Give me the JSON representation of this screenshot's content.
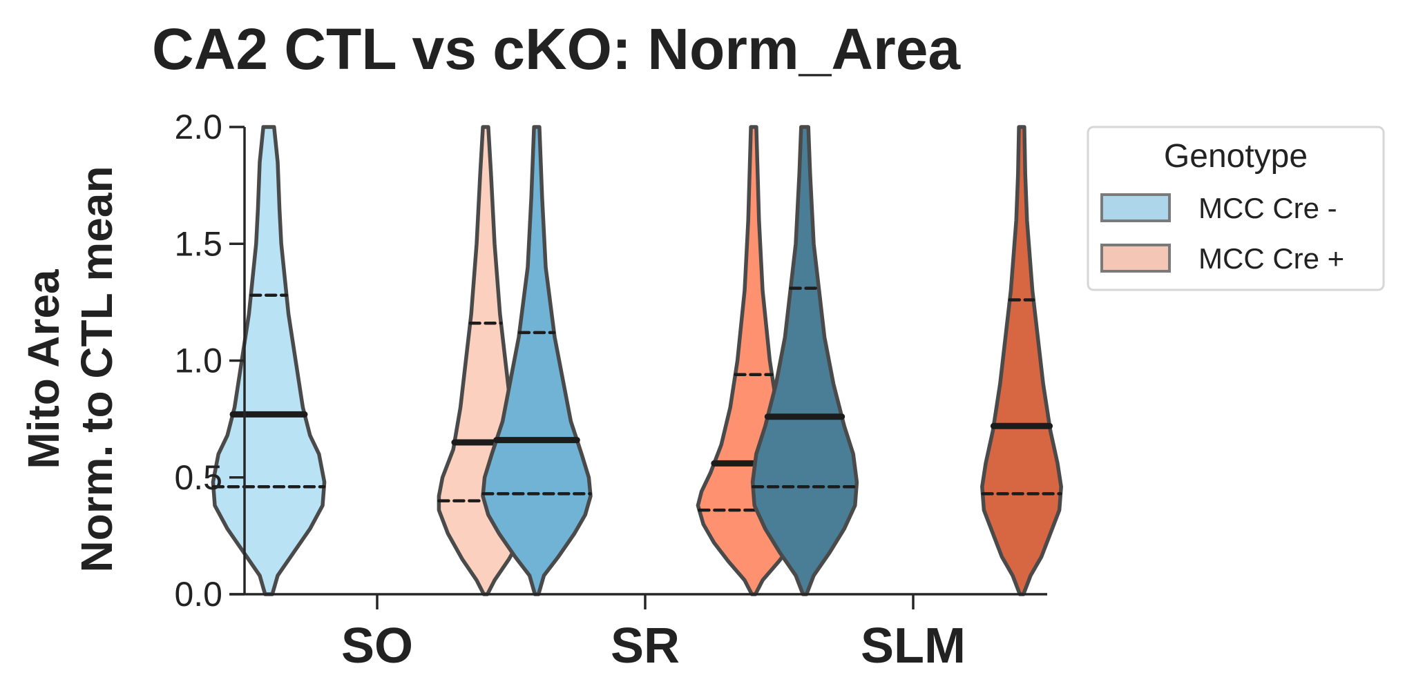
{
  "chart_data": {
    "type": "violin",
    "title": "CA2 CTL vs cKO: Norm_Area",
    "ylabel_lines": [
      "Mito Area",
      "Norm. to CTL mean"
    ],
    "xlabel": "",
    "ylim": [
      0,
      2
    ],
    "yticks": [
      0,
      0.5,
      1,
      1.5,
      2
    ],
    "ytick_labels": [
      "0.0",
      "0.5",
      "1.0",
      "1.5",
      "2.0"
    ],
    "categories": [
      "SO",
      "SR",
      "SLM"
    ],
    "legend": {
      "title": "Genotype",
      "placement": "outside-right",
      "entries": [
        {
          "label": "MCC Cre -",
          "color": "#aed6ea"
        },
        {
          "label": "MCC Cre +",
          "color": "#f4c6b6"
        }
      ]
    },
    "series": [
      {
        "name": "MCC Cre -",
        "colors": [
          "#bae2f5",
          "#71b3d4",
          "#4a7d96"
        ]
      },
      {
        "name": "MCC Cre +",
        "colors": [
          "#fcd0bf",
          "#fe9270",
          "#d76643"
        ]
      }
    ],
    "violins": [
      {
        "category": "SO",
        "series": "MCC Cre -",
        "median": 0.77,
        "q1": 0.46,
        "q3": 1.28,
        "profile": [
          [
            0,
            0.02
          ],
          [
            0.08,
            0.05
          ],
          [
            0.18,
            0.14
          ],
          [
            0.28,
            0.23
          ],
          [
            0.38,
            0.3
          ],
          [
            0.48,
            0.31
          ],
          [
            0.6,
            0.28
          ],
          [
            0.68,
            0.23
          ],
          [
            0.8,
            0.19
          ],
          [
            1.0,
            0.15
          ],
          [
            1.2,
            0.11
          ],
          [
            1.5,
            0.07
          ],
          [
            1.65,
            0.06
          ],
          [
            1.85,
            0.05
          ],
          [
            2.0,
            0.03
          ]
        ]
      },
      {
        "category": "SO",
        "series": "MCC Cre +",
        "median": 0.65,
        "q1": 0.4,
        "q3": 1.16,
        "profile": [
          [
            0,
            0.01
          ],
          [
            0.06,
            0.05
          ],
          [
            0.15,
            0.13
          ],
          [
            0.26,
            0.21
          ],
          [
            0.36,
            0.26
          ],
          [
            0.42,
            0.26
          ],
          [
            0.5,
            0.24
          ],
          [
            0.62,
            0.18
          ],
          [
            0.8,
            0.14
          ],
          [
            1.0,
            0.11
          ],
          [
            1.2,
            0.08
          ],
          [
            1.5,
            0.05
          ],
          [
            1.8,
            0.03
          ],
          [
            2.0,
            0.015
          ]
        ]
      },
      {
        "category": "SR",
        "series": "MCC Cre -",
        "median": 0.66,
        "q1": 0.43,
        "q3": 1.12,
        "profile": [
          [
            0,
            0.01
          ],
          [
            0.08,
            0.04
          ],
          [
            0.16,
            0.12
          ],
          [
            0.26,
            0.21
          ],
          [
            0.34,
            0.27
          ],
          [
            0.42,
            0.3
          ],
          [
            0.5,
            0.29
          ],
          [
            0.6,
            0.25
          ],
          [
            0.74,
            0.19
          ],
          [
            0.9,
            0.15
          ],
          [
            1.1,
            0.1
          ],
          [
            1.4,
            0.05
          ],
          [
            1.7,
            0.03
          ],
          [
            2.0,
            0.015
          ]
        ]
      },
      {
        "category": "SR",
        "series": "MCC Cre +",
        "median": 0.56,
        "q1": 0.36,
        "q3": 0.94,
        "profile": [
          [
            0,
            0.01
          ],
          [
            0.06,
            0.05
          ],
          [
            0.14,
            0.14
          ],
          [
            0.22,
            0.22
          ],
          [
            0.3,
            0.28
          ],
          [
            0.38,
            0.31
          ],
          [
            0.44,
            0.29
          ],
          [
            0.52,
            0.24
          ],
          [
            0.64,
            0.18
          ],
          [
            0.8,
            0.13
          ],
          [
            1.0,
            0.09
          ],
          [
            1.3,
            0.05
          ],
          [
            1.6,
            0.03
          ],
          [
            2.0,
            0.015
          ]
        ]
      },
      {
        "category": "SLM",
        "series": "MCC Cre -",
        "median": 0.76,
        "q1": 0.46,
        "q3": 1.31,
        "profile": [
          [
            0,
            0.01
          ],
          [
            0.08,
            0.05
          ],
          [
            0.18,
            0.14
          ],
          [
            0.28,
            0.22
          ],
          [
            0.38,
            0.28
          ],
          [
            0.48,
            0.29
          ],
          [
            0.6,
            0.27
          ],
          [
            0.72,
            0.22
          ],
          [
            0.9,
            0.16
          ],
          [
            1.1,
            0.11
          ],
          [
            1.3,
            0.08
          ],
          [
            1.5,
            0.05
          ],
          [
            1.8,
            0.03
          ],
          [
            2.0,
            0.02
          ]
        ]
      },
      {
        "category": "SLM",
        "series": "MCC Cre +",
        "median": 0.72,
        "q1": 0.43,
        "q3": 1.26,
        "profile": [
          [
            0,
            0.01
          ],
          [
            0.08,
            0.05
          ],
          [
            0.16,
            0.11
          ],
          [
            0.26,
            0.16
          ],
          [
            0.36,
            0.21
          ],
          [
            0.46,
            0.22
          ],
          [
            0.56,
            0.2
          ],
          [
            0.7,
            0.16
          ],
          [
            0.9,
            0.12
          ],
          [
            1.1,
            0.09
          ],
          [
            1.3,
            0.06
          ],
          [
            1.6,
            0.03
          ],
          [
            1.8,
            0.02
          ],
          [
            2.0,
            0.015
          ]
        ]
      }
    ]
  }
}
